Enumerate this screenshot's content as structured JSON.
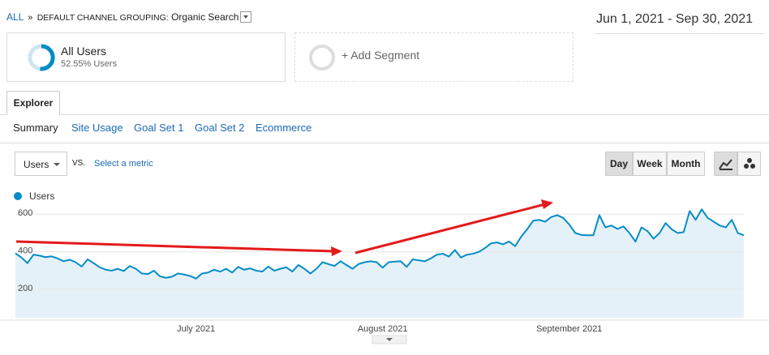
{
  "breadcrumb": {
    "root": "ALL",
    "separator": "»",
    "dimension": "DEFAULT CHANNEL GROUPING:",
    "value": "Organic Search"
  },
  "date_range": "Jun 1, 2021 - Sep 30, 2021",
  "segments": [
    {
      "name": "All Users",
      "detail": "52.55% Users"
    },
    {
      "name": "+ Add Segment"
    }
  ],
  "tab": "Explorer",
  "subtabs": [
    "Summary",
    "Site Usage",
    "Goal Set 1",
    "Goal Set 2",
    "Ecommerce"
  ],
  "metric_selector": {
    "metric": "Users",
    "vs": "VS.",
    "secondary": "Select a metric"
  },
  "granularity": [
    "Day",
    "Week",
    "Month"
  ],
  "chart_data": {
    "type": "line",
    "categories": [
      null,
      null,
      null,
      null,
      null,
      null,
      null,
      null,
      null,
      null,
      null,
      null,
      null,
      null,
      null,
      null,
      null,
      null,
      null,
      null,
      null,
      null,
      null,
      null,
      null,
      null,
      null,
      null,
      null,
      null,
      "July 2021",
      null,
      null,
      null,
      null,
      null,
      null,
      null,
      null,
      null,
      null,
      null,
      null,
      null,
      null,
      null,
      null,
      null,
      null,
      null,
      null,
      null,
      null,
      null,
      null,
      null,
      null,
      null,
      null,
      null,
      null,
      "August 2021",
      null,
      null,
      null,
      null,
      null,
      null,
      null,
      null,
      null,
      null,
      null,
      null,
      null,
      null,
      null,
      null,
      null,
      null,
      null,
      null,
      null,
      null,
      null,
      null,
      null,
      null,
      null,
      null,
      null,
      null,
      "September 2021",
      null,
      null,
      null,
      null,
      null,
      null,
      null,
      null,
      null,
      null,
      null,
      null,
      null,
      null,
      null,
      null,
      null,
      null,
      null,
      null,
      null,
      null,
      null,
      null,
      null,
      null,
      null,
      null,
      null
    ],
    "series": [
      {
        "name": "Users",
        "color": "#058dc7",
        "values": [
          392,
          370,
          340,
          385,
          380,
          372,
          376,
          365,
          350,
          358,
          345,
          322,
          360,
          340,
          318,
          305,
          300,
          310,
          298,
          325,
          310,
          285,
          282,
          300,
          270,
          262,
          268,
          285,
          280,
          272,
          258,
          285,
          290,
          305,
          295,
          310,
          290,
          320,
          305,
          312,
          300,
          295,
          322,
          300,
          310,
          318,
          295,
          330,
          310,
          285,
          310,
          345,
          335,
          325,
          350,
          330,
          310,
          335,
          345,
          350,
          345,
          316,
          345,
          348,
          350,
          320,
          360,
          355,
          350,
          365,
          385,
          390,
          375,
          410,
          370,
          385,
          390,
          400,
          420,
          445,
          450,
          440,
          455,
          430,
          480,
          520,
          565,
          570,
          560,
          585,
          595,
          580,
          545,
          500,
          490,
          488,
          488,
          595,
          530,
          540,
          522,
          535,
          500,
          454,
          530,
          510,
          470,
          500,
          553,
          520,
          500,
          505,
          617,
          570,
          626,
          580,
          560,
          540,
          530,
          570,
          500,
          488
        ]
      }
    ],
    "ylim": [
      50,
      640
    ],
    "yticks": [
      200,
      400,
      600
    ],
    "grid": true,
    "area": true
  }
}
